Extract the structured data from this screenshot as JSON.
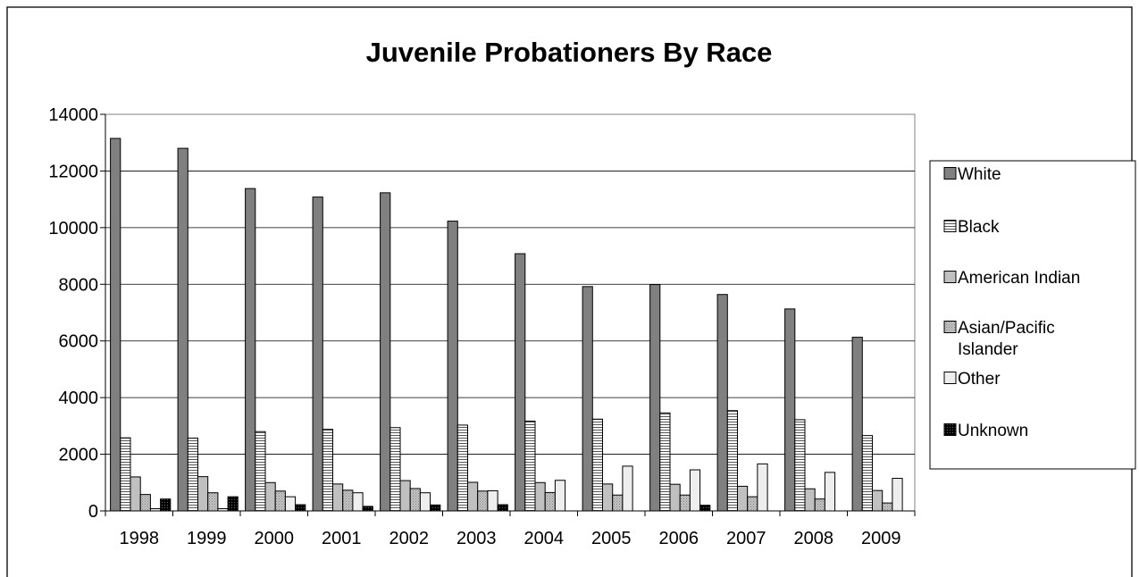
{
  "chart_data": {
    "type": "bar",
    "title": "Juvenile Probationers By Race",
    "xlabel": "",
    "ylabel": "",
    "ylim": [
      0,
      14000
    ],
    "yticks": [
      0,
      2000,
      4000,
      6000,
      8000,
      10000,
      12000,
      14000
    ],
    "grid": true,
    "legend_position": "right",
    "categories": [
      "1998",
      "1999",
      "2000",
      "2001",
      "2002",
      "2003",
      "2004",
      "2005",
      "2006",
      "2007",
      "2008",
      "2009"
    ],
    "series": [
      {
        "name": "White",
        "color": "#808080",
        "pattern": "solid",
        "values": [
          13150,
          12800,
          11380,
          11080,
          11230,
          10230,
          9080,
          7920,
          7990,
          7640,
          7130,
          6130
        ]
      },
      {
        "name": "Black",
        "color": "#ffffff",
        "pattern": "horizontal-lines",
        "values": [
          2580,
          2570,
          2800,
          2880,
          2940,
          3030,
          3170,
          3240,
          3460,
          3540,
          3220,
          2660
        ]
      },
      {
        "name": "American Indian",
        "color": "#c0c0c0",
        "pattern": "solid",
        "values": [
          1200,
          1210,
          1000,
          950,
          1070,
          1010,
          1000,
          950,
          940,
          870,
          780,
          720
        ]
      },
      {
        "name": "Asian/Pacific Islander",
        "color": "#c0c0c0",
        "pattern": "fine-dots",
        "values": [
          580,
          640,
          700,
          730,
          790,
          700,
          650,
          560,
          560,
          500,
          420,
          280
        ]
      },
      {
        "name": "Other",
        "color": "#eeeeee",
        "pattern": "solid",
        "values": [
          80,
          80,
          500,
          640,
          640,
          710,
          1080,
          1580,
          1450,
          1660,
          1360,
          1150
        ]
      },
      {
        "name": "Unknown",
        "color": "#000000",
        "pattern": "checker",
        "values": [
          420,
          500,
          220,
          160,
          210,
          220,
          0,
          0,
          200,
          0,
          0,
          0
        ]
      }
    ]
  }
}
